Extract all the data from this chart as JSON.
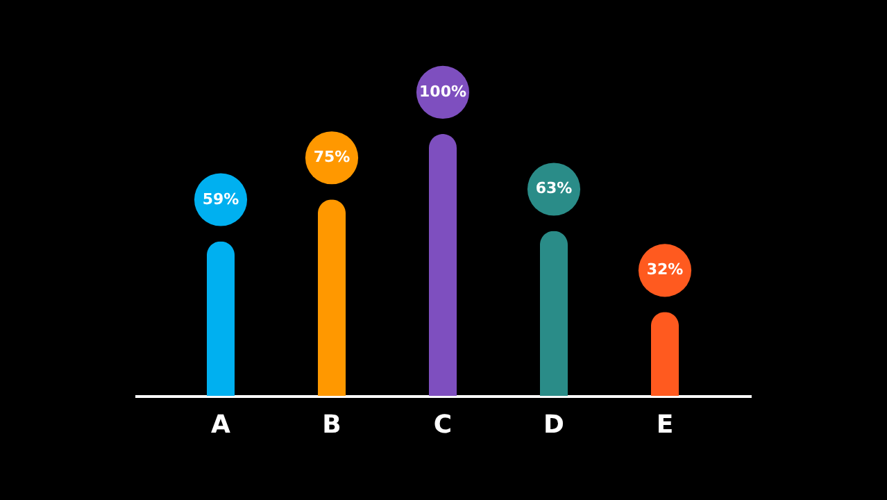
{
  "chart_data": {
    "type": "bar",
    "categories": [
      "A",
      "B",
      "C",
      "D",
      "E"
    ],
    "values": [
      59,
      75,
      100,
      63,
      32
    ],
    "colors": [
      "#00b0f0",
      "#ff9800",
      "#7e4fbf",
      "#2a8c88",
      "#ff5a1f"
    ],
    "value_labels": [
      "59%",
      "75%",
      "100%",
      "63%",
      "32%"
    ]
  }
}
